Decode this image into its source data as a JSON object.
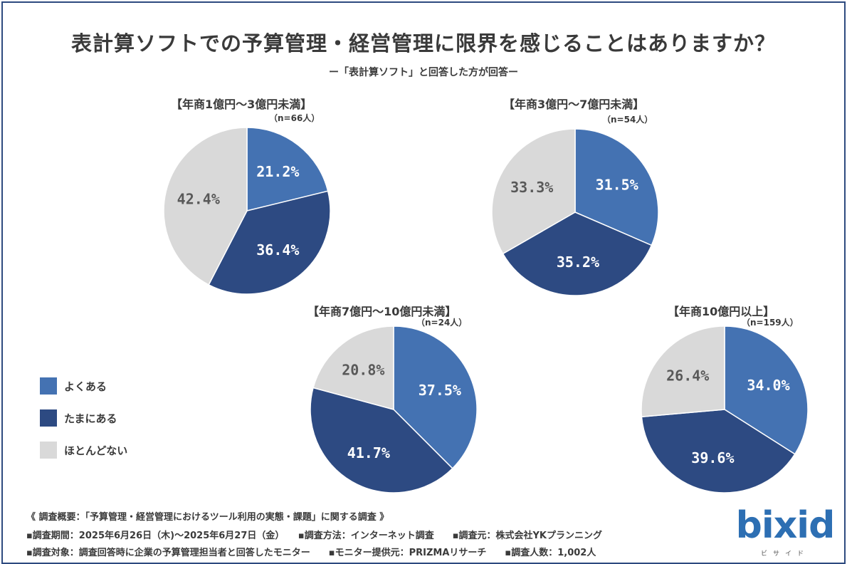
{
  "title": "表計算ソフトでの予算管理・経営管理に限界を感じることはありますか？",
  "subtitle": "ー「表計算ソフト」と回答した方が回答ー",
  "colors": {
    "often": "#4472b2",
    "sometimes": "#2d4a82",
    "rarely": "#d9d9d9",
    "label_light": "#ffffff",
    "label_dark": "#595959"
  },
  "legend": [
    {
      "label": "よくある",
      "color": "#4472b2"
    },
    {
      "label": "たまにある",
      "color": "#2d4a82"
    },
    {
      "label": "ほとんどない",
      "color": "#d9d9d9"
    }
  ],
  "chart_data": [
    {
      "type": "pie",
      "title": "【年商1億円〜3億円未満】",
      "n": "（n=66人）",
      "categories": [
        "よくある",
        "たまにある",
        "ほとんどない"
      ],
      "values": [
        21.2,
        36.4,
        42.4
      ],
      "labels": [
        "21.2%",
        "36.4%",
        "42.4%"
      ]
    },
    {
      "type": "pie",
      "title": "【年商3億円〜7億円未満】",
      "n": "（n=54人）",
      "categories": [
        "よくある",
        "たまにある",
        "ほとんどない"
      ],
      "values": [
        31.5,
        35.2,
        33.3
      ],
      "labels": [
        "31.5%",
        "35.2%",
        "33.3%"
      ]
    },
    {
      "type": "pie",
      "title": "【年商7億円〜10億円未満】",
      "n": "（n=24人）",
      "categories": [
        "よくある",
        "たまにある",
        "ほとんどない"
      ],
      "values": [
        37.5,
        41.7,
        20.8
      ],
      "labels": [
        "37.5%",
        "41.7%",
        "20.8%"
      ]
    },
    {
      "type": "pie",
      "title": "【年商10億円以上】",
      "n": "（n=159人）",
      "categories": [
        "よくある",
        "たまにある",
        "ほとんどない"
      ],
      "values": [
        34.0,
        39.6,
        26.4
      ],
      "labels": [
        "34.0%",
        "39.6%",
        "26.4%"
      ]
    }
  ],
  "footer": {
    "line1": "《 調査概要：「予算管理・経営管理におけるツール利用の実態・課題」に関する調査 》",
    "line2": "▪調査期間：2025年6月26日（木)〜2025年6月27日（金）　　▪調査方法：インターネット調査　　▪調査元：株式会社YKプランニング",
    "line3": "▪調査対象：調査回答時に企業の予算管理担当者と回答したモニター　　▪モニター提供元：PRIZMAリサーチ　　▪調査人数：1,002人"
  },
  "logo": {
    "text": "bixid",
    "sub": "ビサイド"
  }
}
